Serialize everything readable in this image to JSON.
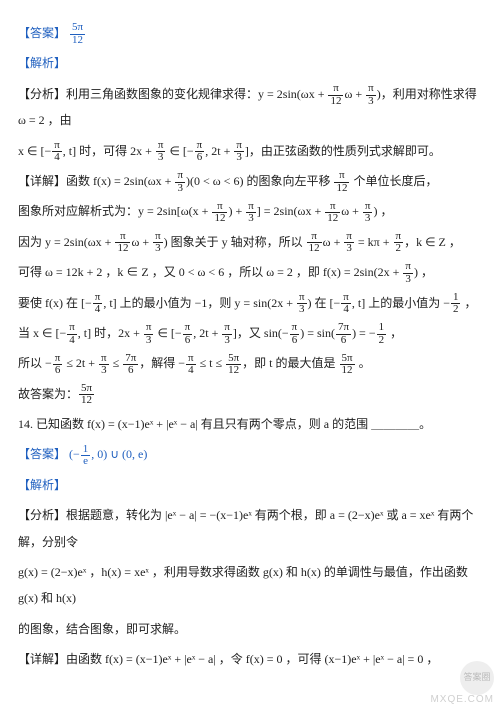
{
  "answer_label": "【答案】",
  "analysis_label": "【解析】",
  "analyze_label": "【分析】",
  "detail_label": "【详解】",
  "q13": {
    "answer_frac": {
      "num": "5π",
      "den": "12"
    },
    "line1a": "利用三角函数图象的变化规律求得：",
    "line1b": "y = 2sin(ωx + ",
    "line1c": "ω + ",
    "line1d": ")",
    "line1e": "，利用对称性求得 ω = 2 ，由",
    "line2a": "x ∈ [−",
    "line2b": ", t] 时，可得 2x + ",
    "line2c": " ∈ [−",
    "line2d": ", 2t + ",
    "line2e": "]，由正弦函数的性质列式求解即可。",
    "line3a": "函数 f(x) = 2sin(ωx + ",
    "line3b": ")(0 < ω < 6) 的图象向左平移 ",
    "line3c": " 个单位长度后，",
    "line4a": "图象所对应解析式为：",
    "line4b": "y = 2sin[ω(x + ",
    "line4c": ") + ",
    "line4d": "] = 2sin(ωx + ",
    "line4e": "ω + ",
    "line4f": ") ，",
    "line5a": "因为 y = 2sin(ωx + ",
    "line5b": "ω + ",
    "line5c": ") 图象关于 y 轴对称，所以 ",
    "line5d": "ω + ",
    "line5e": " = kπ + ",
    "line5f": "，k ∈ Z ，",
    "line6a": "可得 ω = 12k + 2 ，k ∈ Z ，又 0 < ω < 6 ，所以 ω = 2 ，即 f(x) = 2sin(2x + ",
    "line6b": ") ，",
    "line7a": "要使 f(x) 在 [−",
    "line7b": ", t] 上的最小值为 −1，则 y = sin(2x + ",
    "line7c": ") 在 [−",
    "line7d": ", t] 上的最小值为 −",
    "line7e": " ，",
    "line8a": "当 x ∈ [−",
    "line8b": ", t] 时，2x + ",
    "line8c": " ∈ [−",
    "line8d": ", 2t + ",
    "line8e": "]，又 sin(−",
    "line8f": ") = sin(",
    "line8g": ") = −",
    "line8h": " ，",
    "line9a": "所以 −",
    "line9b": " ≤ 2t + ",
    "line9c": " ≤ ",
    "line9d": "，解得 −",
    "line9e": " ≤ t ≤ ",
    "line9f": "，即 t 的最大值是 ",
    "line9g": " 。",
    "line10a": "故答案为：",
    "pi12": {
      "num": "π",
      "den": "12"
    },
    "pi3": {
      "num": "π",
      "den": "3"
    },
    "pi4": {
      "num": "π",
      "den": "4"
    },
    "pi6": {
      "num": "π",
      "den": "6"
    },
    "pi2": {
      "num": "π",
      "den": "2"
    },
    "half": {
      "num": "1",
      "den": "2"
    },
    "seven_pi6": {
      "num": "7π",
      "den": "6"
    },
    "five_pi12": {
      "num": "5π",
      "den": "12"
    }
  },
  "q14": {
    "stem_a": "14. 已知函数 f(x) = (x−1)eˣ + |eˣ − a| 有且只有两个零点，则 a 的范围 ＿＿＿＿",
    "stem_b": "。",
    "ans_a": "(−",
    "ans_b": ", 0) ∪ (0, e)",
    "ans_frac": {
      "num": "1",
      "den": "e"
    },
    "line1a": "根据题意，转化为 |eˣ − a| = −(x−1)eˣ 有两个根，即 a = (2−x)eˣ 或 a = xeˣ 有两个解，分别令",
    "line2a": "g(x) = (2−x)eˣ ，h(x) = xeˣ ，利用导数求得函数 g(x) 和 h(x) 的单调性与最值，作出函数 g(x) 和 h(x)",
    "line3a": "的图象，结合图象，即可求解。",
    "line4a": "由函数 f(x) = (x−1)eˣ + |eˣ − a| ，令 f(x) = 0 ，可得 (x−1)eˣ + |eˣ − a| = 0 ，"
  },
  "watermark": "MXQE.COM",
  "wm_badge": "答案圈"
}
